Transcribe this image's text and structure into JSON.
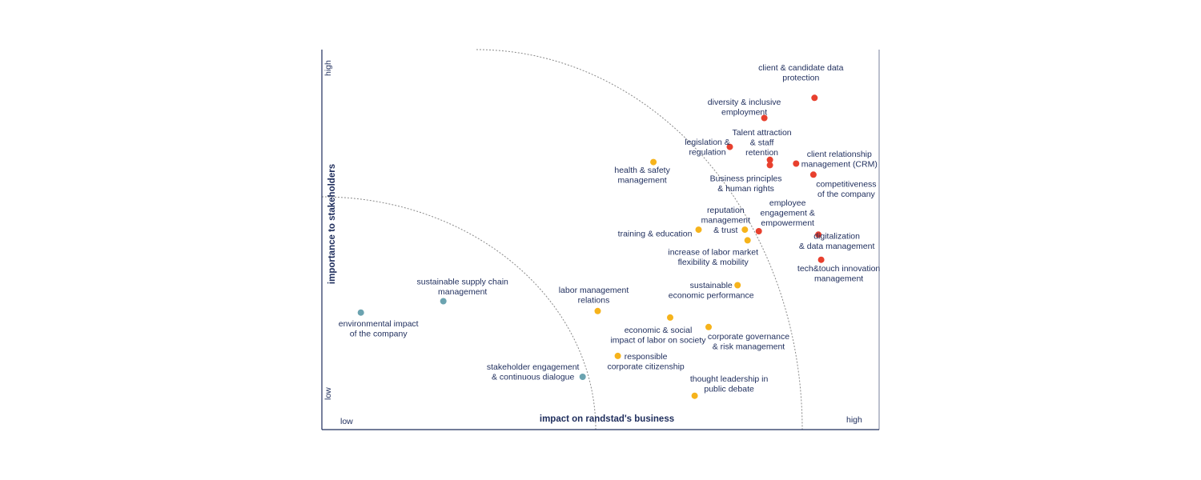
{
  "chart_data": {
    "type": "scatter",
    "title": "",
    "xlabel": "impact on randstad's business",
    "ylabel": "importance to stakeholders",
    "x_low_label": "low",
    "x_high_label": "high",
    "y_low_label": "low",
    "y_high_label": "high",
    "xlim": [
      0,
      100
    ],
    "ylim": [
      0,
      100
    ],
    "grid": false,
    "colors": {
      "high": "#e8402e",
      "medium": "#f6b31b",
      "low": "#6ba3b0",
      "axis": "#1e2d5c",
      "arc": "#8a8a8a"
    },
    "points": [
      {
        "lines": [
          "client & candidate data",
          "protection"
        ],
        "x": 88.4,
        "y": 87.3,
        "group": "high",
        "label_pos": "above-left"
      },
      {
        "lines": [
          "diversity & inclusive",
          "employment"
        ],
        "x": 79.4,
        "y": 82.0,
        "group": "high",
        "label_pos": "above-left"
      },
      {
        "lines": [
          "legislation &",
          "regulation"
        ],
        "x": 73.2,
        "y": 74.4,
        "group": "high",
        "label_pos": "left"
      },
      {
        "lines": [
          "Talent attraction",
          "& staff",
          "retention"
        ],
        "x": 80.4,
        "y": 71.0,
        "group": "high",
        "label_pos": "above"
      },
      {
        "lines": [
          "Business principles",
          "& human rights"
        ],
        "x": 80.4,
        "y": 69.6,
        "group": "high",
        "label_pos": "below-left"
      },
      {
        "lines": [
          "client relationship",
          "management (CRM)"
        ],
        "x": 85.1,
        "y": 70.0,
        "group": "high",
        "label_pos": "right"
      },
      {
        "lines": [
          "competitiveness",
          "of the company"
        ],
        "x": 88.2,
        "y": 67.1,
        "group": "high",
        "label_pos": "below-right"
      },
      {
        "lines": [
          "employee",
          "engagement &",
          "empowerment"
        ],
        "x": 78.4,
        "y": 52.2,
        "group": "high",
        "label_pos": "above-right"
      },
      {
        "lines": [
          "digitalization",
          "& data management"
        ],
        "x": 89.1,
        "y": 51.3,
        "group": "high",
        "label_pos": "right"
      },
      {
        "lines": [
          "tech&touch innovation",
          "management"
        ],
        "x": 89.6,
        "y": 44.7,
        "group": "high",
        "label_pos": "below"
      },
      {
        "lines": [
          "health & safety",
          "management"
        ],
        "x": 59.5,
        "y": 70.4,
        "group": "medium",
        "label_pos": "below-left"
      },
      {
        "lines": [
          "training & education"
        ],
        "x": 67.6,
        "y": 52.6,
        "group": "medium",
        "label_pos": "left"
      },
      {
        "lines": [
          "reputation",
          "management",
          "& trust"
        ],
        "x": 75.9,
        "y": 52.6,
        "group": "medium",
        "label_pos": "left"
      },
      {
        "lines": [
          "increase of labor market",
          "flexibility & mobility"
        ],
        "x": 76.4,
        "y": 49.8,
        "group": "medium",
        "label_pos": "below"
      },
      {
        "lines": [
          "sustainable",
          "economic performance"
        ],
        "x": 74.6,
        "y": 38.0,
        "group": "medium",
        "label_pos": "left"
      },
      {
        "lines": [
          "labor management",
          "relations"
        ],
        "x": 49.5,
        "y": 31.2,
        "group": "medium",
        "label_pos": "above"
      },
      {
        "lines": [
          "economic & social",
          "impact of labor on society"
        ],
        "x": 62.5,
        "y": 29.5,
        "group": "medium",
        "label_pos": "below"
      },
      {
        "lines": [
          "corporate governance",
          "& risk management"
        ],
        "x": 69.4,
        "y": 27.0,
        "group": "medium",
        "label_pos": "below-right"
      },
      {
        "lines": [
          "responsible",
          "corporate citizenship"
        ],
        "x": 53.1,
        "y": 19.4,
        "group": "medium",
        "label_pos": "right"
      },
      {
        "lines": [
          "thought leadership in",
          "public debate"
        ],
        "x": 66.9,
        "y": 8.9,
        "group": "medium",
        "label_pos": "above-right"
      },
      {
        "lines": [
          "sustainable supply chain",
          "management"
        ],
        "x": 21.8,
        "y": 33.8,
        "group": "low",
        "label_pos": "above"
      },
      {
        "lines": [
          "environmental impact",
          "of the company"
        ],
        "x": 7.0,
        "y": 30.8,
        "group": "low",
        "label_pos": "below"
      },
      {
        "lines": [
          "stakeholder engagement",
          "& continuous dialogue"
        ],
        "x": 46.8,
        "y": 13.9,
        "group": "low",
        "label_pos": "left"
      }
    ]
  }
}
